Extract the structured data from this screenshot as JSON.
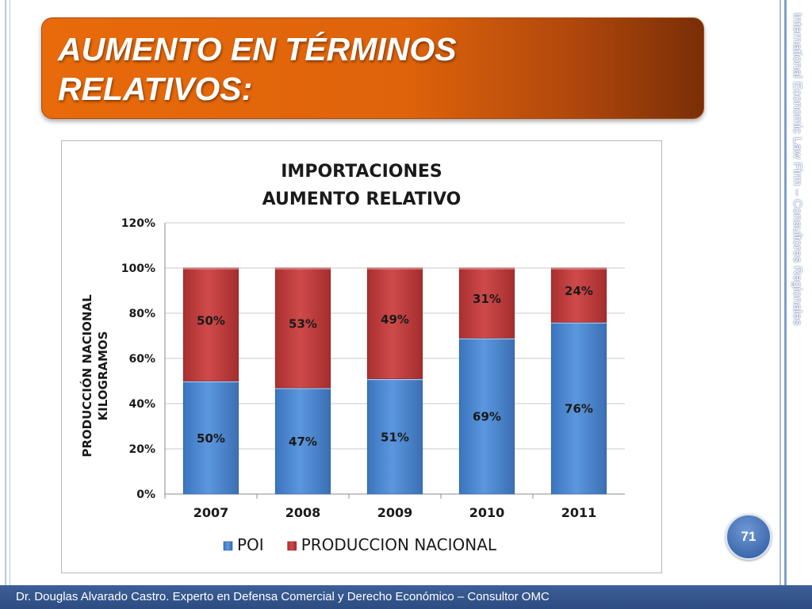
{
  "slide": {
    "title": "AUMENTO EN TÉRMINOS\nRELATIVOS:",
    "side_text": "International Economic Law Firm – Consultores Regionales",
    "page_number": "71",
    "footer": "Dr. Douglas Alvarado Castro. Experto en Defensa Comercial y Derecho Económico – Consultor OMC"
  },
  "colors": {
    "title_banner": "#e86a0a",
    "series_poi": "#4a86d0",
    "series_nacional": "#c0393a",
    "footer_bar": "#2c4c82"
  },
  "chart_data": {
    "type": "bar",
    "stacked": true,
    "title_lines": [
      "IMPORTACIONES",
      "AUMENTO RELATIVO"
    ],
    "ylabel_lines": [
      "PRODUCCIÓN NACIONAL",
      "KILOGRAMOS"
    ],
    "xlabel": "",
    "categories": [
      "2007",
      "2008",
      "2009",
      "2010",
      "2011"
    ],
    "series": [
      {
        "name": "POI",
        "values": [
          50,
          47,
          51,
          69,
          76
        ],
        "labels": [
          "50%",
          "47%",
          "51%",
          "69%",
          "76%"
        ],
        "color": "#4a86d0"
      },
      {
        "name": "PRODUCCION NACIONAL",
        "values": [
          50,
          53,
          49,
          31,
          24
        ],
        "labels": [
          "50%",
          "53%",
          "49%",
          "31%",
          "24%"
        ],
        "color": "#c0393a"
      }
    ],
    "ylim": [
      0,
      120
    ],
    "yticks": [
      0,
      20,
      40,
      60,
      80,
      100,
      120
    ],
    "ytick_labels": [
      "0%",
      "20%",
      "40%",
      "60%",
      "80%",
      "100%",
      "120%"
    ],
    "grid": true,
    "legend_position": "bottom"
  }
}
